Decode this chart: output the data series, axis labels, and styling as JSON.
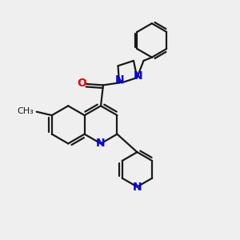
{
  "bg_color": "#efefef",
  "bond_color": "#1a1a1a",
  "N_color": "#0000ee",
  "O_color": "#ee0000",
  "line_width": 1.6,
  "font_size": 10,
  "figsize": [
    3.0,
    3.0
  ],
  "dpi": 100,
  "xlim": [
    0,
    10
  ],
  "ylim": [
    0,
    10
  ]
}
